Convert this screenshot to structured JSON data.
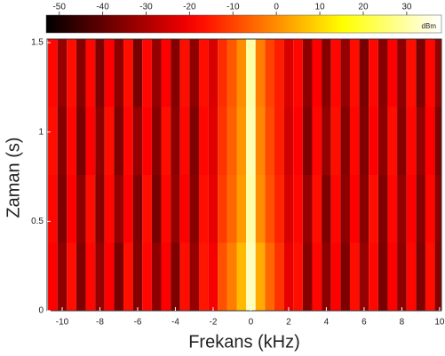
{
  "chart_data": {
    "type": "heatmap",
    "x_label": "Frekans (kHz)",
    "y_label": "Zaman (s)",
    "xlim": [
      -10.8,
      10.1
    ],
    "ylim": [
      0,
      1.52
    ],
    "xticks": [
      -10,
      -8,
      -6,
      -4,
      -2,
      0,
      2,
      4,
      6,
      8,
      10
    ],
    "yticks": [
      0,
      0.5,
      1,
      1.5
    ],
    "x": [
      -10.5,
      -10,
      -9.5,
      -9,
      -8.5,
      -8,
      -7.5,
      -7,
      -6.5,
      -6,
      -5.5,
      -5,
      -4.5,
      -4,
      -3.5,
      -3,
      -2.5,
      -2,
      -1.5,
      -1,
      -0.5,
      0,
      0.5,
      1,
      1.5,
      2,
      2.5,
      3,
      3.5,
      4,
      4.5,
      5,
      5.5,
      6,
      6.5,
      7,
      7.5,
      8,
      8.5,
      9,
      9.5,
      10
    ],
    "y": [
      0.19,
      0.57,
      0.95,
      1.33
    ],
    "z": [
      [
        -19,
        -34,
        -17,
        -36,
        -18,
        -33,
        -19,
        -37,
        -17,
        -35,
        -18,
        -34,
        -19,
        -36,
        -17,
        -33,
        -16,
        -20,
        -8,
        -2,
        6,
        32,
        4,
        -5,
        -12,
        -22,
        -17,
        -35,
        -18,
        -34,
        -19,
        -36,
        -17,
        -33,
        -18,
        -37,
        -19,
        -34,
        -18,
        -36,
        -17,
        -35
      ],
      [
        -18,
        -36,
        -19,
        -34,
        -17,
        -35,
        -18,
        -33,
        -19,
        -36,
        -17,
        -37,
        -18,
        -33,
        -19,
        -35,
        -17,
        -22,
        -11,
        -5,
        2,
        30,
        0,
        -8,
        -14,
        -24,
        -18,
        -33,
        -17,
        -36,
        -18,
        -34,
        -19,
        -35,
        -17,
        -36,
        -18,
        -33,
        -19,
        -35,
        -18,
        -34
      ],
      [
        -17,
        -35,
        -18,
        -37,
        -19,
        -34,
        -17,
        -36,
        -18,
        -33,
        -19,
        -35,
        -17,
        -34,
        -18,
        -36,
        -18,
        -23,
        -12,
        -6,
        1,
        31,
        -1,
        -9,
        -15,
        -25,
        -19,
        -36,
        -18,
        -33,
        -17,
        -35,
        -18,
        -36,
        -19,
        -34,
        -17,
        -35,
        -18,
        -33,
        -19,
        -36
      ],
      [
        -18,
        -33,
        -17,
        -35,
        -18,
        -36,
        -19,
        -34,
        -17,
        -37,
        -18,
        -33,
        -19,
        -35,
        -17,
        -34,
        -17,
        -24,
        -13,
        -7,
        0,
        30,
        -2,
        -10,
        -15,
        -24,
        -18,
        -34,
        -19,
        -35,
        -18,
        -33,
        -17,
        -37,
        -18,
        -35,
        -19,
        -34,
        -17,
        -36,
        -18,
        -33
      ]
    ],
    "colorbar": {
      "label": "dBm",
      "lim": [
        -53,
        38
      ],
      "ticks": [
        -50,
        -40,
        -30,
        -20,
        -10,
        0,
        10,
        20,
        30
      ]
    }
  }
}
